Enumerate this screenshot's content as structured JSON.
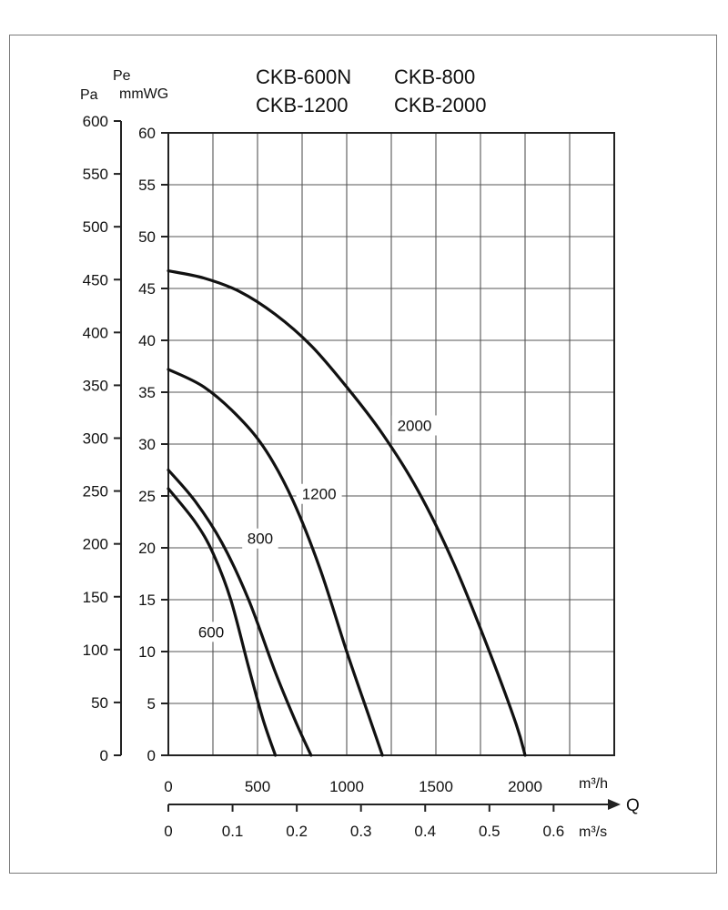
{
  "chart_data": {
    "type": "line",
    "title_lines": [
      [
        "CKB-600N",
        "CKB-800"
      ],
      [
        "CKB-1200",
        "CKB-2000"
      ]
    ],
    "left_axis": {
      "unit": "Pa",
      "ylim": [
        0,
        600
      ],
      "ticks": [
        "0",
        "50",
        "100",
        "150",
        "200",
        "250",
        "300",
        "350",
        "400",
        "450",
        "500",
        "550",
        "600"
      ]
    },
    "right_axis": {
      "unit_top": "Pe",
      "unit_bottom": "mmWG",
      "ylim": [
        0,
        60
      ],
      "ticks": [
        "0",
        "5",
        "10",
        "15",
        "20",
        "25",
        "30",
        "35",
        "40",
        "45",
        "50",
        "55",
        "60"
      ]
    },
    "x_axis": {
      "unit": "m³/h",
      "xlim": [
        0,
        2500
      ],
      "ticks": [
        {
          "value": 0,
          "label": "0"
        },
        {
          "value": 500,
          "label": "500"
        },
        {
          "value": 1000,
          "label": "1000"
        },
        {
          "value": 1500,
          "label": "1500"
        },
        {
          "value": 2000,
          "label": "2000"
        }
      ],
      "grid_step": 250
    },
    "x_axis_secondary": {
      "unit": "m³/s",
      "ticks": [
        {
          "value": 0,
          "label": "0"
        },
        {
          "value": 0.1,
          "label": "0.1"
        },
        {
          "value": 0.2,
          "label": "0.2"
        },
        {
          "value": 0.3,
          "label": "0.3"
        },
        {
          "value": 0.4,
          "label": "0.4"
        },
        {
          "value": 0.5,
          "label": "0.5"
        },
        {
          "value": 0.6,
          "label": "0.6"
        }
      ]
    },
    "q_label": "Q",
    "grid": true,
    "series": [
      {
        "name": "600",
        "label": "600",
        "label_at": [
          240,
          11.9
        ],
        "x": [
          0,
          150,
          250,
          350,
          450,
          530,
          600
        ],
        "y": [
          25.7,
          22.5,
          19.5,
          15,
          8.5,
          3.5,
          0
        ]
      },
      {
        "name": "800",
        "label": "800",
        "label_at": [
          515,
          20.9
        ],
        "x": [
          0,
          150,
          300,
          450,
          600,
          720,
          800
        ],
        "y": [
          27.5,
          24.5,
          20.5,
          15,
          8,
          3,
          0
        ]
      },
      {
        "name": "1200",
        "label": "1200",
        "label_at": [
          845,
          25.2
        ],
        "x": [
          0,
          200,
          400,
          550,
          700,
          850,
          1000,
          1120,
          1200
        ],
        "y": [
          37.2,
          35.5,
          32.5,
          29.3,
          24.5,
          18,
          10,
          4,
          0
        ]
      },
      {
        "name": "2000",
        "label": "2000",
        "label_at": [
          1380,
          31.8
        ],
        "x": [
          0,
          200,
          400,
          600,
          800,
          1000,
          1200,
          1400,
          1600,
          1800,
          1950,
          2000
        ],
        "y": [
          46.7,
          46,
          44.7,
          42.5,
          39.5,
          35.5,
          31,
          25.5,
          18.5,
          10,
          3,
          0
        ]
      }
    ]
  }
}
